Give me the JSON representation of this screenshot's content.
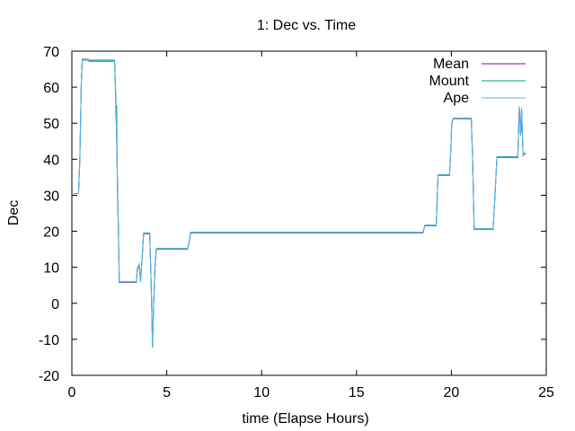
{
  "chart_data": {
    "type": "line",
    "title": "1: Dec vs. Time",
    "xlabel": "time (Elapse Hours)",
    "ylabel": "Dec",
    "xlim": [
      0,
      25
    ],
    "ylim": [
      -20,
      70
    ],
    "xticks": [
      0,
      5,
      10,
      15,
      20,
      25
    ],
    "yticks": [
      -20,
      -10,
      0,
      10,
      20,
      30,
      40,
      50,
      60,
      70
    ],
    "grid": false,
    "legend_position": "top-right",
    "series": [
      {
        "name": "Mean",
        "color": "#8b00b0",
        "points": [
          [
            0,
            30.5
          ],
          [
            0.35,
            30.5
          ],
          [
            0.42,
            40
          ],
          [
            0.5,
            62
          ],
          [
            0.55,
            67.5
          ],
          [
            0.85,
            67.5
          ],
          [
            0.9,
            67.2
          ],
          [
            2.25,
            67.2
          ],
          [
            2.3,
            60
          ],
          [
            2.38,
            40
          ],
          [
            2.45,
            20
          ],
          [
            2.5,
            5.8
          ],
          [
            3.4,
            5.8
          ],
          [
            3.45,
            9.5
          ],
          [
            3.55,
            10.5
          ],
          [
            3.62,
            6
          ],
          [
            3.72,
            14
          ],
          [
            3.78,
            19.3
          ],
          [
            4.1,
            19.3
          ],
          [
            4.18,
            5
          ],
          [
            4.25,
            -12
          ],
          [
            4.3,
            -2
          ],
          [
            4.38,
            10
          ],
          [
            4.45,
            15
          ],
          [
            6.1,
            15
          ],
          [
            6.2,
            17.5
          ],
          [
            6.25,
            19.5
          ],
          [
            18.5,
            19.5
          ],
          [
            18.6,
            21.5
          ],
          [
            19.2,
            21.5
          ],
          [
            19.3,
            35.5
          ],
          [
            19.9,
            35.5
          ],
          [
            19.95,
            40
          ],
          [
            20.02,
            50
          ],
          [
            20.1,
            51.2
          ],
          [
            21.05,
            51.2
          ],
          [
            21.12,
            40
          ],
          [
            21.2,
            20.5
          ],
          [
            22.2,
            20.5
          ],
          [
            22.3,
            30
          ],
          [
            22.4,
            40.5
          ],
          [
            23.5,
            40.5
          ],
          [
            23.58,
            54.5
          ],
          [
            23.65,
            46.5
          ],
          [
            23.7,
            54
          ],
          [
            23.78,
            41
          ],
          [
            23.85,
            41.5
          ],
          [
            23.92,
            41.5
          ]
        ]
      },
      {
        "name": "Mount",
        "color": "#009e73",
        "points": [
          [
            0,
            30.5
          ],
          [
            0.35,
            30.5
          ],
          [
            0.42,
            40
          ],
          [
            0.5,
            62
          ],
          [
            0.55,
            67.8
          ],
          [
            0.85,
            67.8
          ],
          [
            0.9,
            67.5
          ],
          [
            2.25,
            67.5
          ],
          [
            2.28,
            62
          ],
          [
            2.32,
            52
          ],
          [
            2.36,
            55
          ],
          [
            2.4,
            30
          ],
          [
            2.45,
            22
          ],
          [
            2.5,
            6
          ],
          [
            3.4,
            6
          ],
          [
            3.45,
            9.8
          ],
          [
            3.55,
            10.8
          ],
          [
            3.62,
            6.2
          ],
          [
            3.72,
            14.2
          ],
          [
            3.78,
            19.5
          ],
          [
            4.1,
            19.5
          ],
          [
            4.18,
            5.2
          ],
          [
            4.25,
            -12.3
          ],
          [
            4.3,
            -1.8
          ],
          [
            4.38,
            10.2
          ],
          [
            4.45,
            15.2
          ],
          [
            6.1,
            15.2
          ],
          [
            6.2,
            17.7
          ],
          [
            6.25,
            19.7
          ],
          [
            18.5,
            19.7
          ],
          [
            18.6,
            21.7
          ],
          [
            19.2,
            21.7
          ],
          [
            19.3,
            35.7
          ],
          [
            19.9,
            35.7
          ],
          [
            19.95,
            40.2
          ],
          [
            20.02,
            50.2
          ],
          [
            20.1,
            51.4
          ],
          [
            21.05,
            51.4
          ],
          [
            21.12,
            40.2
          ],
          [
            21.2,
            20.7
          ],
          [
            22.2,
            20.7
          ],
          [
            22.3,
            30.2
          ],
          [
            22.4,
            40.7
          ],
          [
            23.5,
            40.7
          ],
          [
            23.58,
            54.7
          ],
          [
            23.65,
            46.7
          ],
          [
            23.7,
            54.2
          ],
          [
            23.78,
            41.2
          ],
          [
            23.85,
            41.7
          ],
          [
            23.92,
            41.7
          ]
        ]
      },
      {
        "name": "Ape",
        "color": "#56b4e9",
        "points": [
          [
            0,
            30.5
          ],
          [
            0.35,
            30.5
          ],
          [
            0.42,
            40
          ],
          [
            0.5,
            62
          ],
          [
            0.55,
            67.6
          ],
          [
            0.85,
            67.6
          ],
          [
            0.9,
            67.3
          ],
          [
            2.25,
            67.3
          ],
          [
            2.3,
            60
          ],
          [
            2.38,
            40
          ],
          [
            2.45,
            20
          ],
          [
            2.5,
            5.9
          ],
          [
            3.4,
            5.9
          ],
          [
            3.45,
            9.6
          ],
          [
            3.55,
            10.6
          ],
          [
            3.62,
            6.1
          ],
          [
            3.72,
            14.1
          ],
          [
            3.78,
            19.4
          ],
          [
            4.1,
            19.4
          ],
          [
            4.18,
            5.1
          ],
          [
            4.25,
            -12.1
          ],
          [
            4.3,
            -1.9
          ],
          [
            4.38,
            10.1
          ],
          [
            4.45,
            15.1
          ],
          [
            6.1,
            15.1
          ],
          [
            6.2,
            17.6
          ],
          [
            6.25,
            19.6
          ],
          [
            18.5,
            19.6
          ],
          [
            18.6,
            21.6
          ],
          [
            19.2,
            21.6
          ],
          [
            19.3,
            35.6
          ],
          [
            19.9,
            35.6
          ],
          [
            19.95,
            40.1
          ],
          [
            20.02,
            50.1
          ],
          [
            20.1,
            51.3
          ],
          [
            21.05,
            51.3
          ],
          [
            21.12,
            40.1
          ],
          [
            21.2,
            20.6
          ],
          [
            22.2,
            20.6
          ],
          [
            22.3,
            30.1
          ],
          [
            22.4,
            40.6
          ],
          [
            23.5,
            40.6
          ],
          [
            23.58,
            54.6
          ],
          [
            23.65,
            46.6
          ],
          [
            23.7,
            54.1
          ],
          [
            23.78,
            41.1
          ],
          [
            23.85,
            41.6
          ],
          [
            23.92,
            41.6
          ]
        ]
      }
    ]
  }
}
